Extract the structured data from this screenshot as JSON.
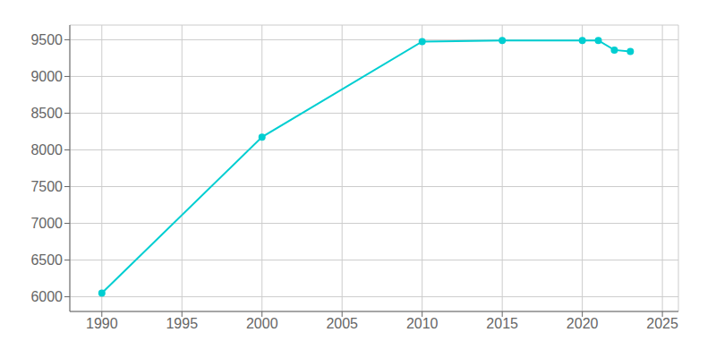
{
  "chart_data": {
    "type": "line",
    "x": [
      1990,
      2000,
      2010,
      2015,
      2020,
      2021,
      2022,
      2023
    ],
    "values": [
      6050,
      8175,
      9475,
      9490,
      9490,
      9490,
      9360,
      9340
    ],
    "color": "#00CED1",
    "marker": "circle",
    "xlim": [
      1988,
      2026
    ],
    "ylim": [
      5800,
      9700
    ],
    "xticks": [
      1990,
      1995,
      2000,
      2005,
      2010,
      2015,
      2020,
      2025
    ],
    "yticks": [
      6000,
      6500,
      7000,
      7500,
      8000,
      8500,
      9000,
      9500
    ],
    "grid": true
  }
}
